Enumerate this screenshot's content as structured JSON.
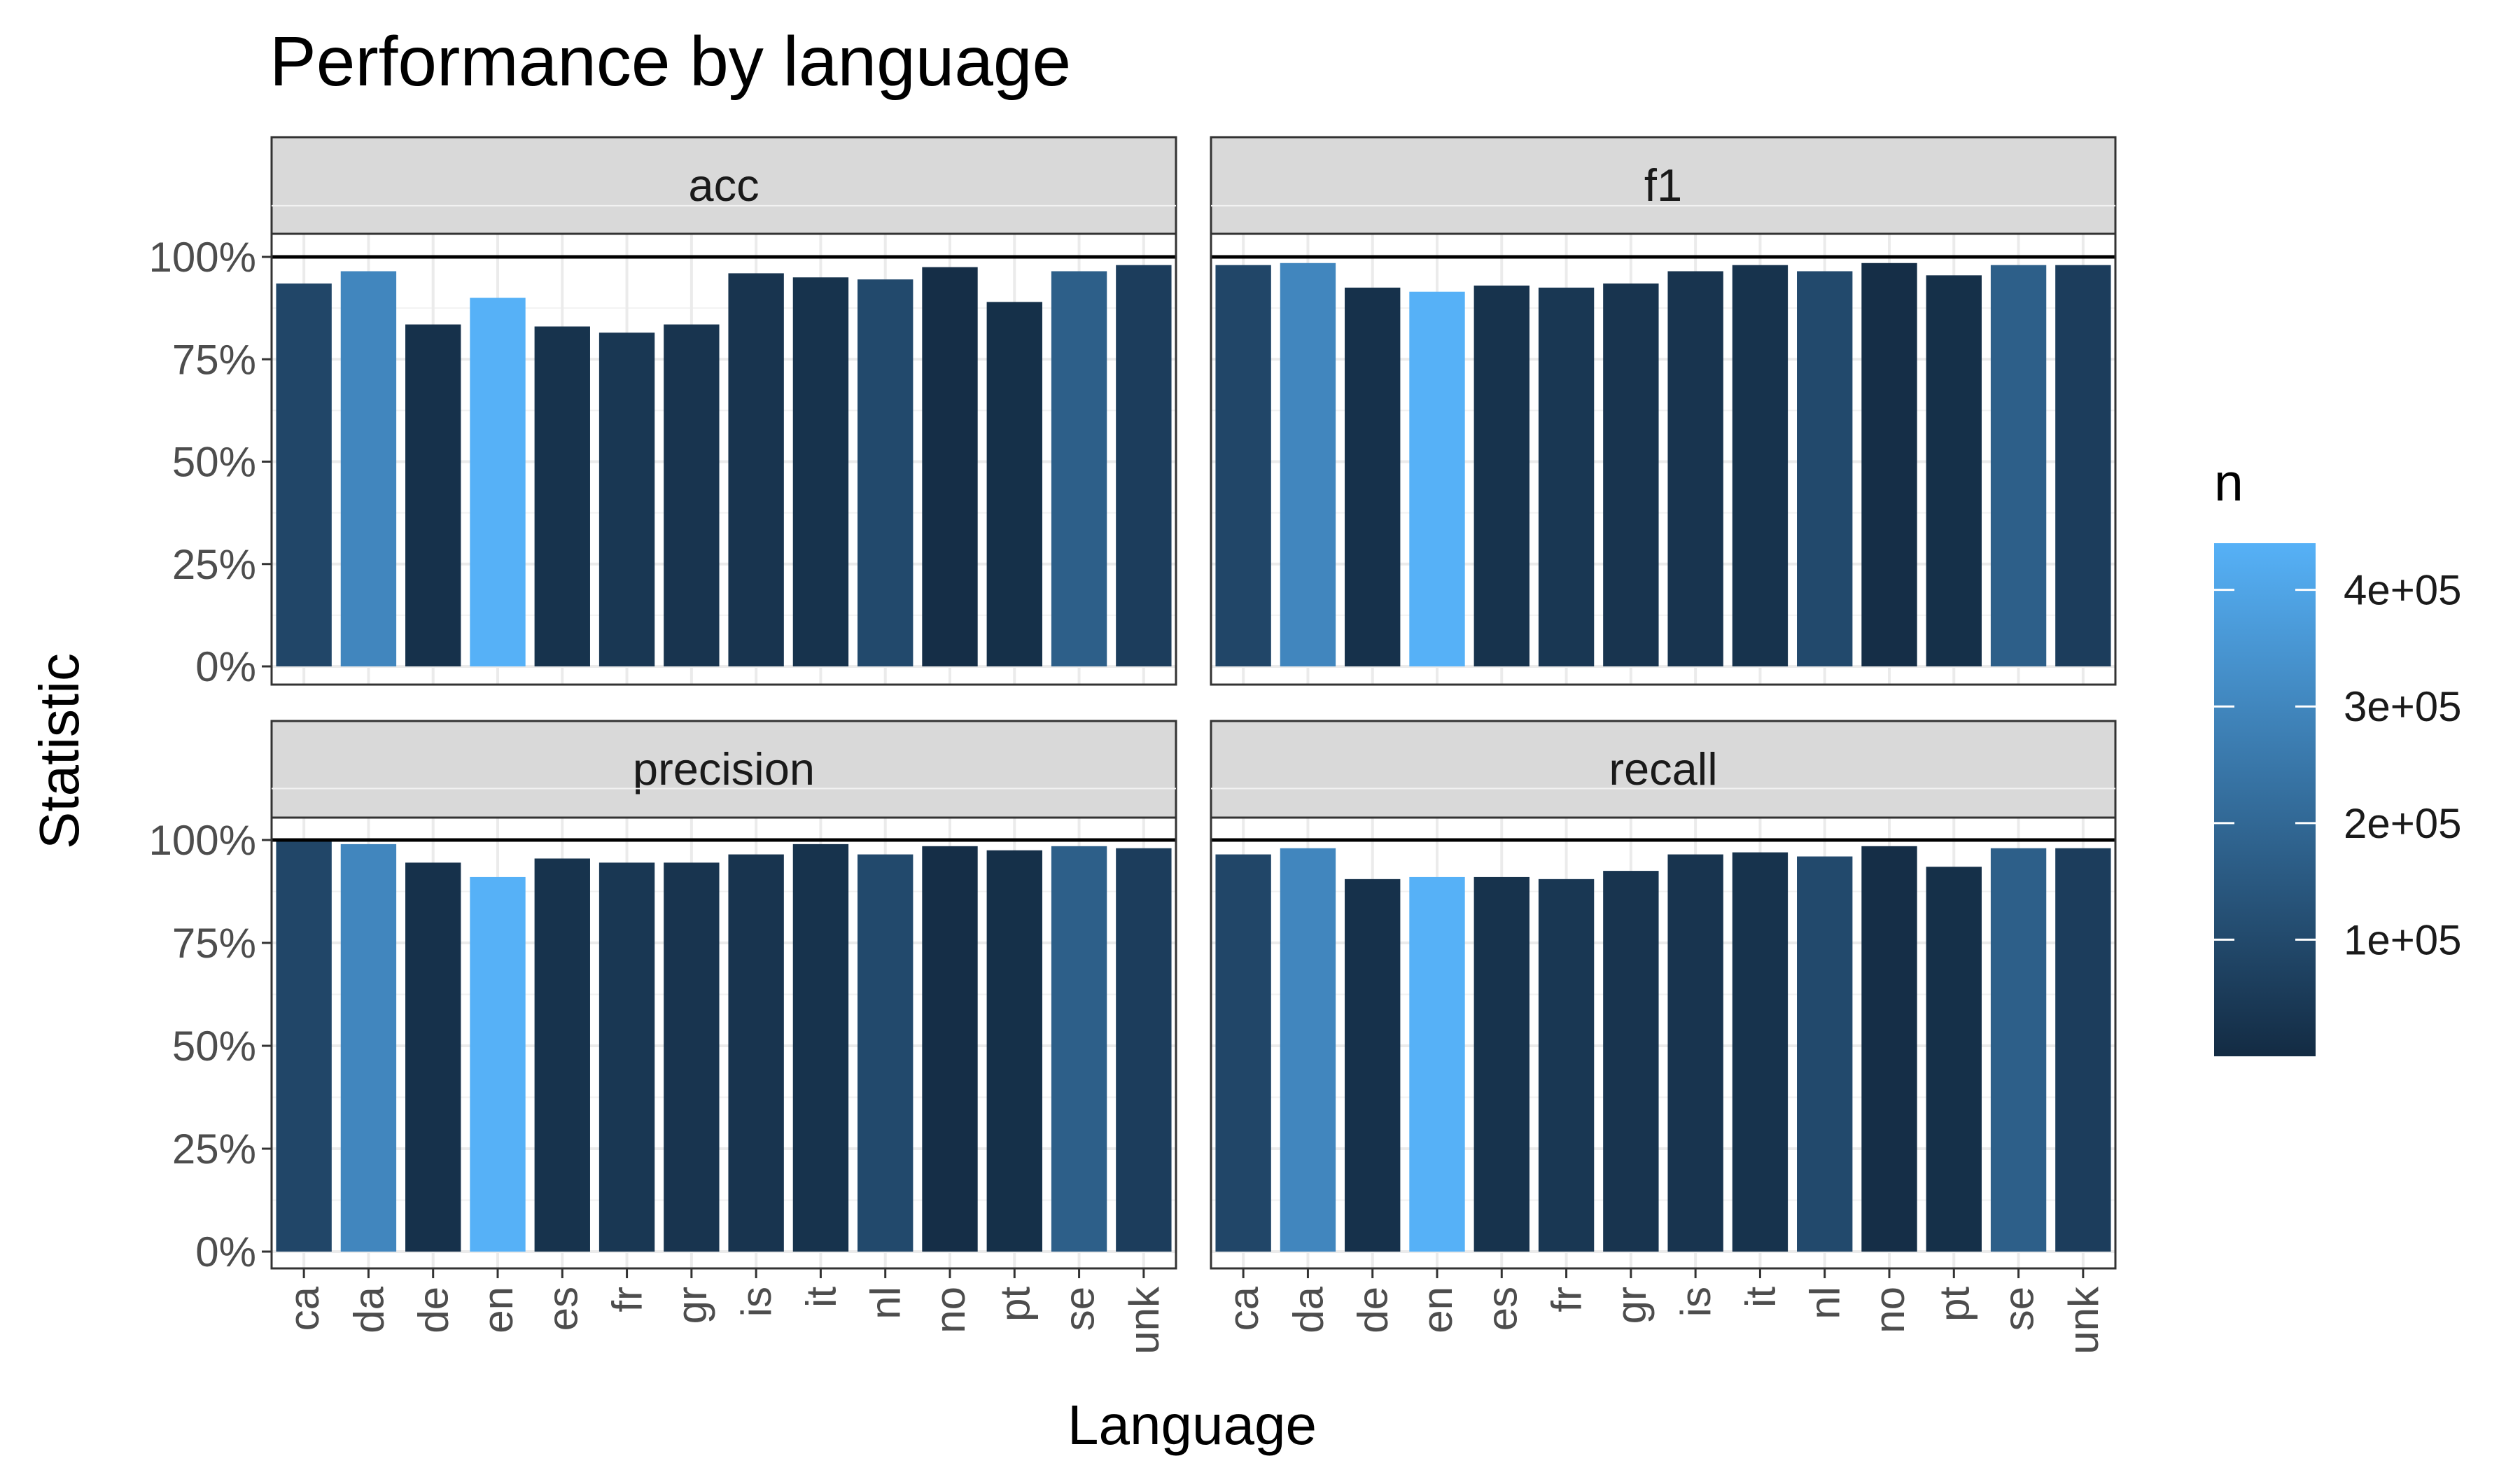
{
  "chart_data": {
    "type": "bar",
    "title": "Performance by language",
    "xlabel": "Language",
    "ylabel": "Statistic",
    "categories": [
      "ca",
      "da",
      "de",
      "en",
      "es",
      "fr",
      "gr",
      "is",
      "it",
      "nl",
      "no",
      "pt",
      "se",
      "unk"
    ],
    "ylim": [
      0,
      1.2
    ],
    "y_ticks": [
      0,
      0.25,
      0.5,
      0.75,
      1.0
    ],
    "y_tick_labels": [
      "0%",
      "25%",
      "50%",
      "75%",
      "100%"
    ],
    "reference_line": 1.0,
    "grid": true,
    "facets": [
      "acc",
      "f1",
      "precision",
      "recall"
    ],
    "series": [
      {
        "name": "acc",
        "values": [
          0.935,
          0.965,
          0.835,
          0.9,
          0.83,
          0.815,
          0.835,
          0.96,
          0.95,
          0.945,
          0.975,
          0.89,
          0.965,
          0.98
        ]
      },
      {
        "name": "f1",
        "values": [
          0.98,
          0.985,
          0.925,
          0.915,
          0.93,
          0.925,
          0.935,
          0.965,
          0.98,
          0.965,
          0.985,
          0.955,
          0.98,
          0.98
        ]
      },
      {
        "name": "precision",
        "values": [
          1.0,
          0.99,
          0.945,
          0.91,
          0.955,
          0.945,
          0.945,
          0.965,
          0.99,
          0.965,
          0.985,
          0.975,
          0.985,
          0.98
        ]
      },
      {
        "name": "recall",
        "values": [
          0.965,
          0.98,
          0.905,
          0.91,
          0.91,
          0.905,
          0.925,
          0.965,
          0.97,
          0.96,
          0.985,
          0.935,
          0.98,
          0.98
        ]
      }
    ],
    "fill": {
      "variable": "n",
      "counts": [
        90000,
        300000,
        20000,
        440000,
        25000,
        40000,
        30000,
        30000,
        25000,
        100000,
        10000,
        15000,
        170000,
        60000
      ],
      "scale_low": "#132B43",
      "scale_high": "#56B1F7",
      "min": 0,
      "max": 440000
    },
    "legend": {
      "title": "n",
      "position": "right",
      "breaks": [
        100000,
        200000,
        300000,
        400000
      ],
      "labels": [
        "1e+05",
        "2e+05",
        "3e+05",
        "4e+05"
      ]
    }
  }
}
